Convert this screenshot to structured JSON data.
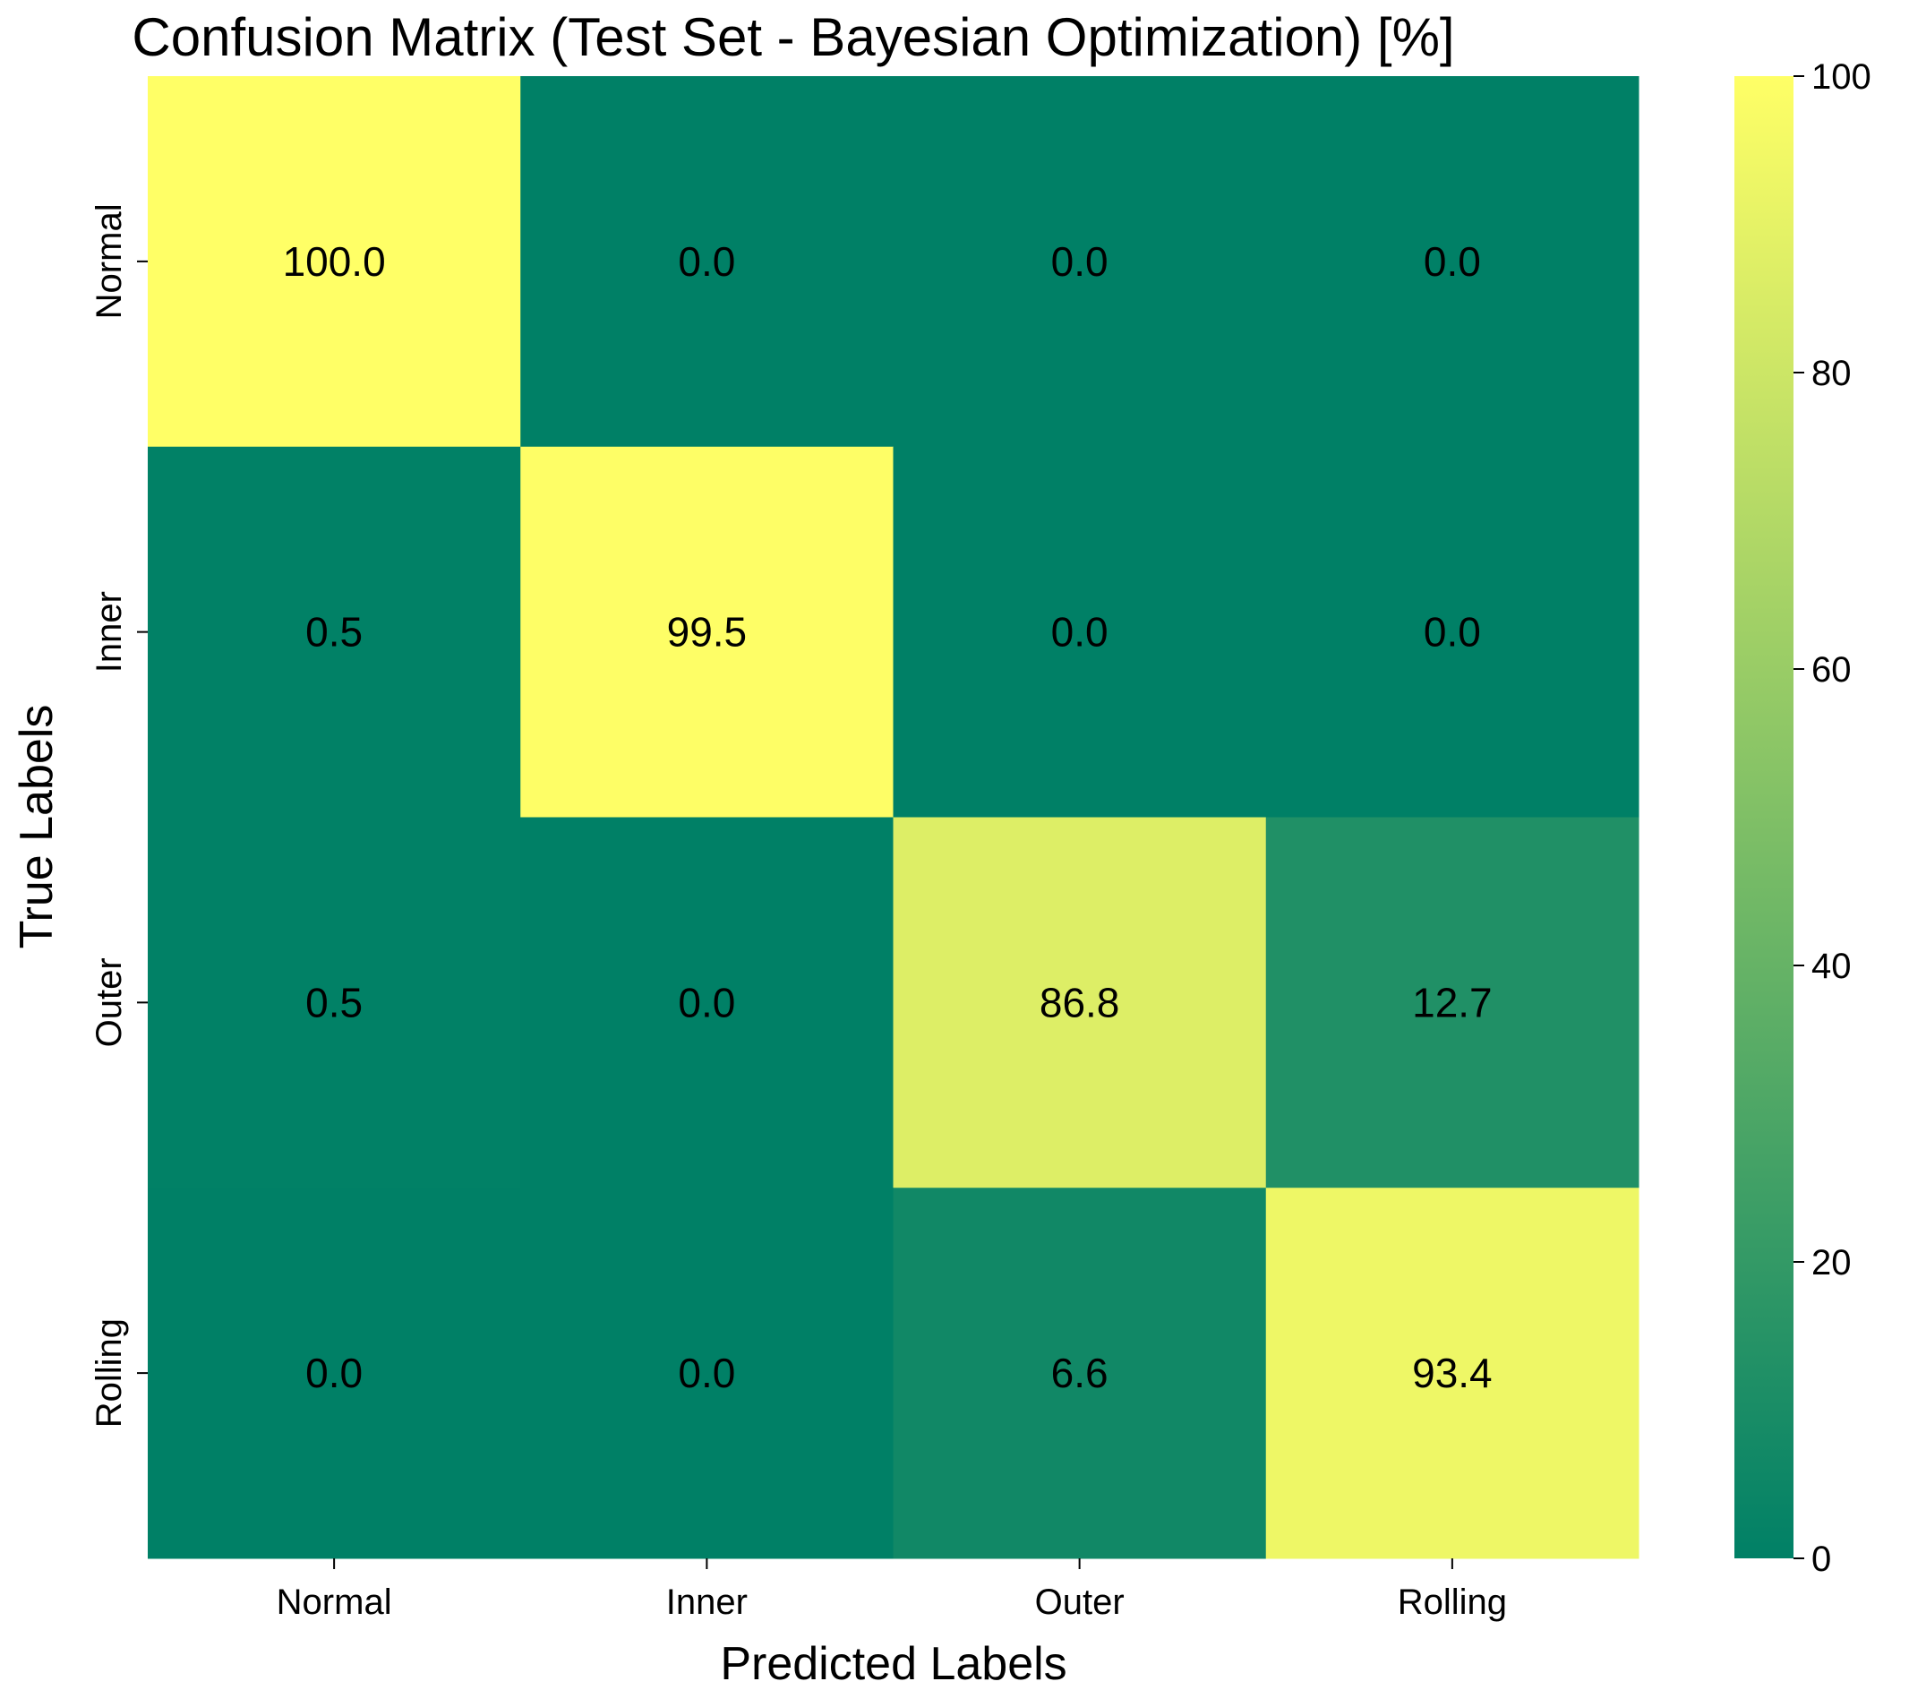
{
  "chart_data": {
    "type": "heatmap",
    "title": "Confusion Matrix (Test Set - Bayesian Optimization) [%]",
    "xlabel": "Predicted Labels",
    "ylabel": "True Labels",
    "x_categories": [
      "Normal",
      "Inner",
      "Outer",
      "Rolling"
    ],
    "y_categories": [
      "Normal",
      "Inner",
      "Outer",
      "Rolling"
    ],
    "values": [
      [
        100.0,
        0.0,
        0.0,
        0.0
      ],
      [
        0.5,
        99.5,
        0.0,
        0.0
      ],
      [
        0.5,
        0.0,
        86.8,
        12.7
      ],
      [
        0.0,
        0.0,
        6.6,
        93.4
      ]
    ],
    "value_labels": [
      [
        "100.0",
        "0.0",
        "0.0",
        "0.0"
      ],
      [
        "0.5",
        "99.5",
        "0.0",
        "0.0"
      ],
      [
        "0.5",
        "0.0",
        "86.8",
        "12.7"
      ],
      [
        "0.0",
        "0.0",
        "6.6",
        "93.4"
      ]
    ],
    "colorbar": {
      "range": [
        0,
        100
      ],
      "ticks": [
        0,
        20,
        40,
        60,
        80,
        100
      ],
      "tick_labels": [
        "0",
        "20",
        "40",
        "60",
        "80",
        "100"
      ],
      "colormap": "summer",
      "low_color": "#008066",
      "high_color": "#ffff66"
    },
    "grid": false
  }
}
